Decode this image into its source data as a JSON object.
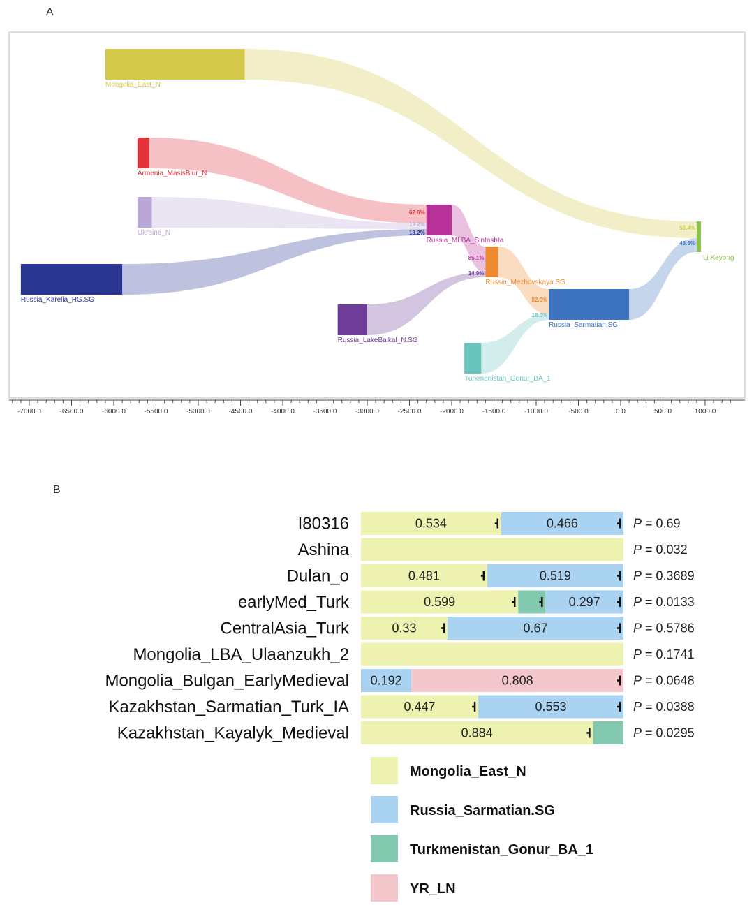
{
  "colors": {
    "mongolia": "#d4c94a",
    "armenia": "#e2333a",
    "ukraine": "#b8a6d6",
    "karelia": "#2a3591",
    "sintashta": "#b8329a",
    "mezhovskaya": "#ee8a30",
    "lakebaikal": "#6e3d99",
    "sarmatian": "#3d73bf",
    "turkmenistan": "#69c4bd",
    "likeyong": "#8bc34a",
    "bar_mongolia": "#eef2b0",
    "bar_sarmatian": "#a9d3f1",
    "bar_turkmenistan": "#82c9af",
    "bar_yr": "#f3c7cc"
  },
  "chart_data": [
    {
      "type": "sankey",
      "panel": "A",
      "x_ticks": [
        "-7000.0",
        "-6500.0",
        "-6000.0",
        "-5500.0",
        "-5000.0",
        "-4500.0",
        "-4000.0",
        "-3500.0",
        "-3000.0",
        "-2500.0",
        "-2000.0",
        "-1500.0",
        "-1000.0",
        "-500.0",
        "0.0",
        "500.0",
        "1000.0"
      ],
      "xlim": [
        -7200,
        1300
      ],
      "nodes": [
        {
          "id": "mongolia",
          "label": "Mongolia_East_N",
          "start": -6100,
          "end": -4450,
          "color_key": "mongolia"
        },
        {
          "id": "armenia",
          "label": "Armenia_MasisBlur_N",
          "start": -5720,
          "end": -5580,
          "color_key": "armenia"
        },
        {
          "id": "ukraine",
          "label": "Ukraine_N",
          "start": -5720,
          "end": -5550,
          "color_key": "ukraine"
        },
        {
          "id": "karelia",
          "label": "Russia_Karelia_HG.SG",
          "start": -7100,
          "end": -5900,
          "color_key": "karelia"
        },
        {
          "id": "sintashta",
          "label": "Russia_MLBA_Sintashta",
          "start": -2300,
          "end": -2000,
          "color_key": "sintashta"
        },
        {
          "id": "mezhovskaya",
          "label": "Russia_Mezhovskaya.SG",
          "start": -1600,
          "end": -1450,
          "color_key": "mezhovskaya"
        },
        {
          "id": "lakebaikal",
          "label": "Russia_LakeBaikal_N.SG",
          "start": -3350,
          "end": -3000,
          "color_key": "lakebaikal"
        },
        {
          "id": "sarmatian",
          "label": "Russia_Sarmatian.SG",
          "start": -850,
          "end": 100,
          "color_key": "sarmatian"
        },
        {
          "id": "turkmenistan",
          "label": "Turkmenistan_Gonur_BA_1",
          "start": -1850,
          "end": -1650,
          "color_key": "turkmenistan"
        },
        {
          "id": "likeyong",
          "label": "Li Keyong",
          "start": 900,
          "end": 950,
          "color_key": "likeyong"
        }
      ],
      "flows": [
        {
          "from": "armenia",
          "to": "sintashta",
          "pct": "62.6%"
        },
        {
          "from": "ukraine",
          "to": "sintashta",
          "pct": "19.2%"
        },
        {
          "from": "karelia",
          "to": "sintashta",
          "pct": "18.2%"
        },
        {
          "from": "sintashta",
          "to": "mezhovskaya",
          "pct": "85.1%"
        },
        {
          "from": "lakebaikal",
          "to": "mezhovskaya",
          "pct": "14.9%"
        },
        {
          "from": "mezhovskaya",
          "to": "sarmatian",
          "pct": "82.0%"
        },
        {
          "from": "turkmenistan",
          "to": "sarmatian",
          "pct": "18.0%"
        },
        {
          "from": "mongolia",
          "to": "likeyong",
          "pct": "53.4%"
        },
        {
          "from": "sarmatian",
          "to": "likeyong",
          "pct": "46.6%"
        }
      ]
    },
    {
      "type": "bar",
      "panel": "B",
      "stacked": true,
      "orientation": "horizontal",
      "rows": [
        {
          "label": "I80316",
          "p_prefix": "P",
          "p_value": "= 0.69",
          "segments": [
            {
              "key": "mongolia",
              "value": 0.534,
              "label": "0.534",
              "err": true
            },
            {
              "key": "sarmatian",
              "value": 0.466,
              "label": "0.466",
              "err": true
            }
          ]
        },
        {
          "label": "Ashina",
          "p_prefix": "P",
          "p_value": "= 0.032",
          "segments": [
            {
              "key": "mongolia",
              "value": 1.0,
              "label": "",
              "err": false
            }
          ]
        },
        {
          "label": "Dulan_o",
          "p_prefix": "P",
          "p_value": "= 0.3689",
          "segments": [
            {
              "key": "mongolia",
              "value": 0.481,
              "label": "0.481",
              "err": true
            },
            {
              "key": "sarmatian",
              "value": 0.519,
              "label": "0.519",
              "err": true
            }
          ]
        },
        {
          "label": "earlyMed_Turk",
          "p_prefix": "P",
          "p_value": "= 0.0133",
          "segments": [
            {
              "key": "mongolia",
              "value": 0.599,
              "label": "0.599",
              "err": true
            },
            {
              "key": "turkmenistan",
              "value": 0.104,
              "label": "",
              "err": true
            },
            {
              "key": "sarmatian",
              "value": 0.297,
              "label": "0.297",
              "err": true
            }
          ]
        },
        {
          "label": "CentralAsia_Turk",
          "p_prefix": "P",
          "p_value": "= 0.5786",
          "segments": [
            {
              "key": "mongolia",
              "value": 0.33,
              "label": "0.33",
              "err": true
            },
            {
              "key": "sarmatian",
              "value": 0.67,
              "label": "0.67",
              "err": true
            }
          ]
        },
        {
          "label": "Mongolia_LBA_Ulaanzukh_2",
          "p_prefix": "P",
          "p_value": "= 0.1741",
          "segments": [
            {
              "key": "mongolia",
              "value": 1.0,
              "label": "",
              "err": false
            }
          ]
        },
        {
          "label": "Mongolia_Bulgan_EarlyMedieval",
          "p_prefix": "P",
          "p_value": "= 0.0648",
          "segments": [
            {
              "key": "sarmatian",
              "value": 0.192,
              "label": "0.192",
              "err": false
            },
            {
              "key": "yr",
              "value": 0.808,
              "label": "0.808",
              "err": true
            }
          ]
        },
        {
          "label": "Kazakhstan_Sarmatian_Turk_IA",
          "p_prefix": "P",
          "p_value": "= 0.0388",
          "segments": [
            {
              "key": "mongolia",
              "value": 0.447,
              "label": "0.447",
              "err": true
            },
            {
              "key": "sarmatian",
              "value": 0.553,
              "label": "0.553",
              "err": true
            }
          ]
        },
        {
          "label": "Kazakhstan_Kayalyk_Medieval",
          "p_prefix": "P",
          "p_value": "= 0.0295",
          "segments": [
            {
              "key": "mongolia",
              "value": 0.884,
              "label": "0.884",
              "err": true
            },
            {
              "key": "turkmenistan",
              "value": 0.116,
              "label": "",
              "err": false
            }
          ]
        }
      ],
      "legend": [
        {
          "key": "mongolia",
          "label": "Mongolia_East_N"
        },
        {
          "key": "sarmatian",
          "label": "Russia_Sarmatian.SG"
        },
        {
          "key": "turkmenistan",
          "label": "Turkmenistan_Gonur_BA_1"
        },
        {
          "key": "yr",
          "label": "YR_LN"
        }
      ]
    }
  ]
}
